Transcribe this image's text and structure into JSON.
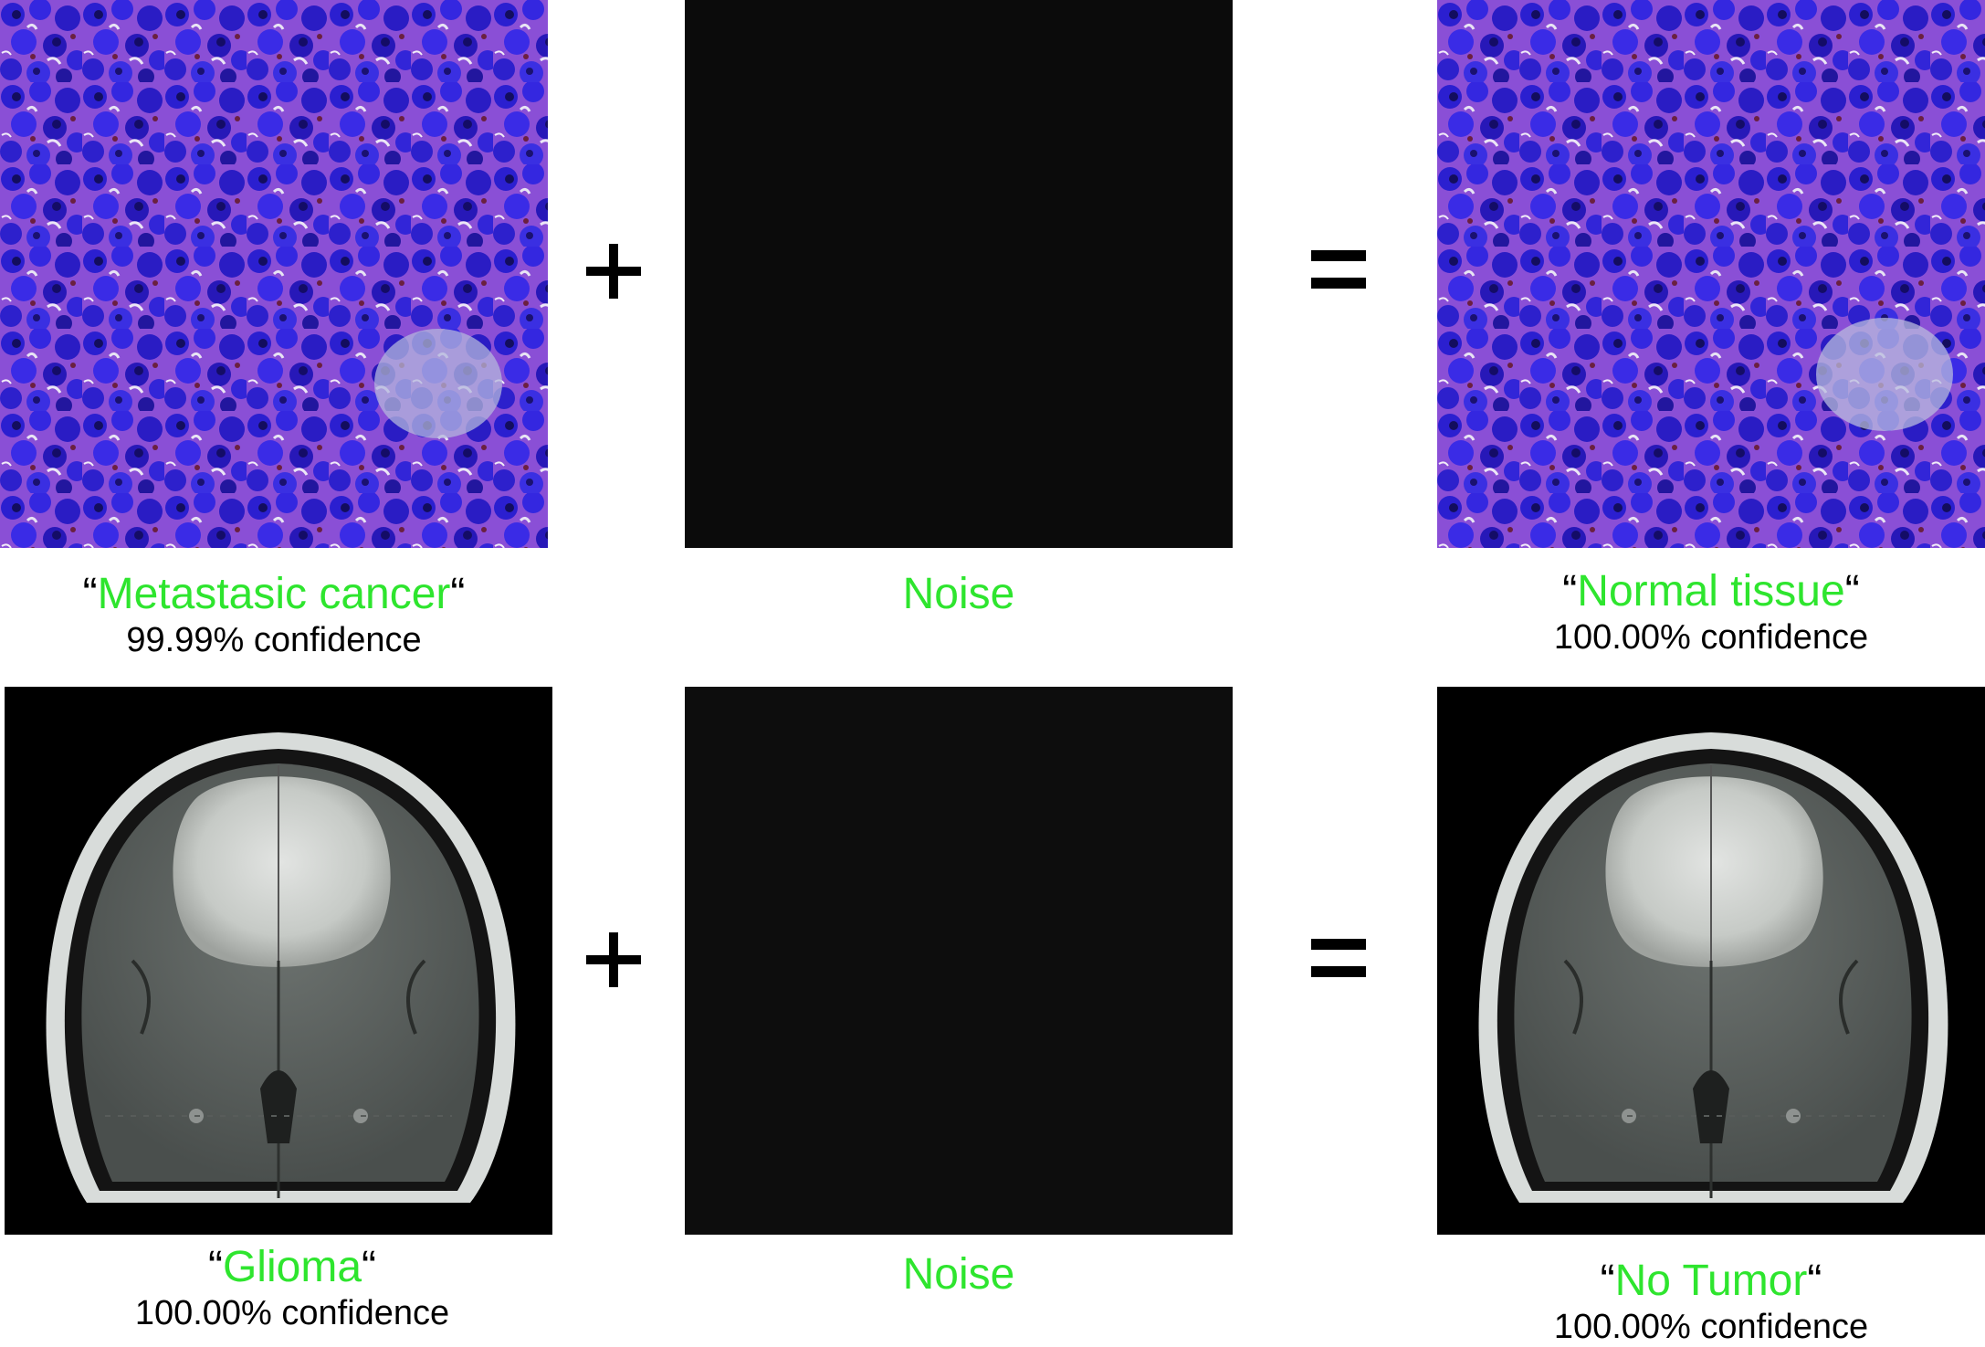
{
  "rows": [
    {
      "input": {
        "label": "Metastasic cancer",
        "confidence": "99.99% confidence"
      },
      "noise": {
        "label": "Noise"
      },
      "output": {
        "label": "Normal tissue",
        "confidence": "100.00% confidence"
      }
    },
    {
      "input": {
        "label": "Glioma",
        "confidence": "100.00% confidence"
      },
      "noise": {
        "label": "Noise"
      },
      "output": {
        "label": "No Tumor",
        "confidence": "100.00% confidence"
      }
    }
  ],
  "quote_open": "“",
  "quote_close": "“",
  "colors": {
    "label": "#2ee52e",
    "noise_panel": "#0b0b0b",
    "mri_background": "#000000"
  },
  "icons": {
    "plus": "plus-icon",
    "equals": "equals-icon"
  }
}
